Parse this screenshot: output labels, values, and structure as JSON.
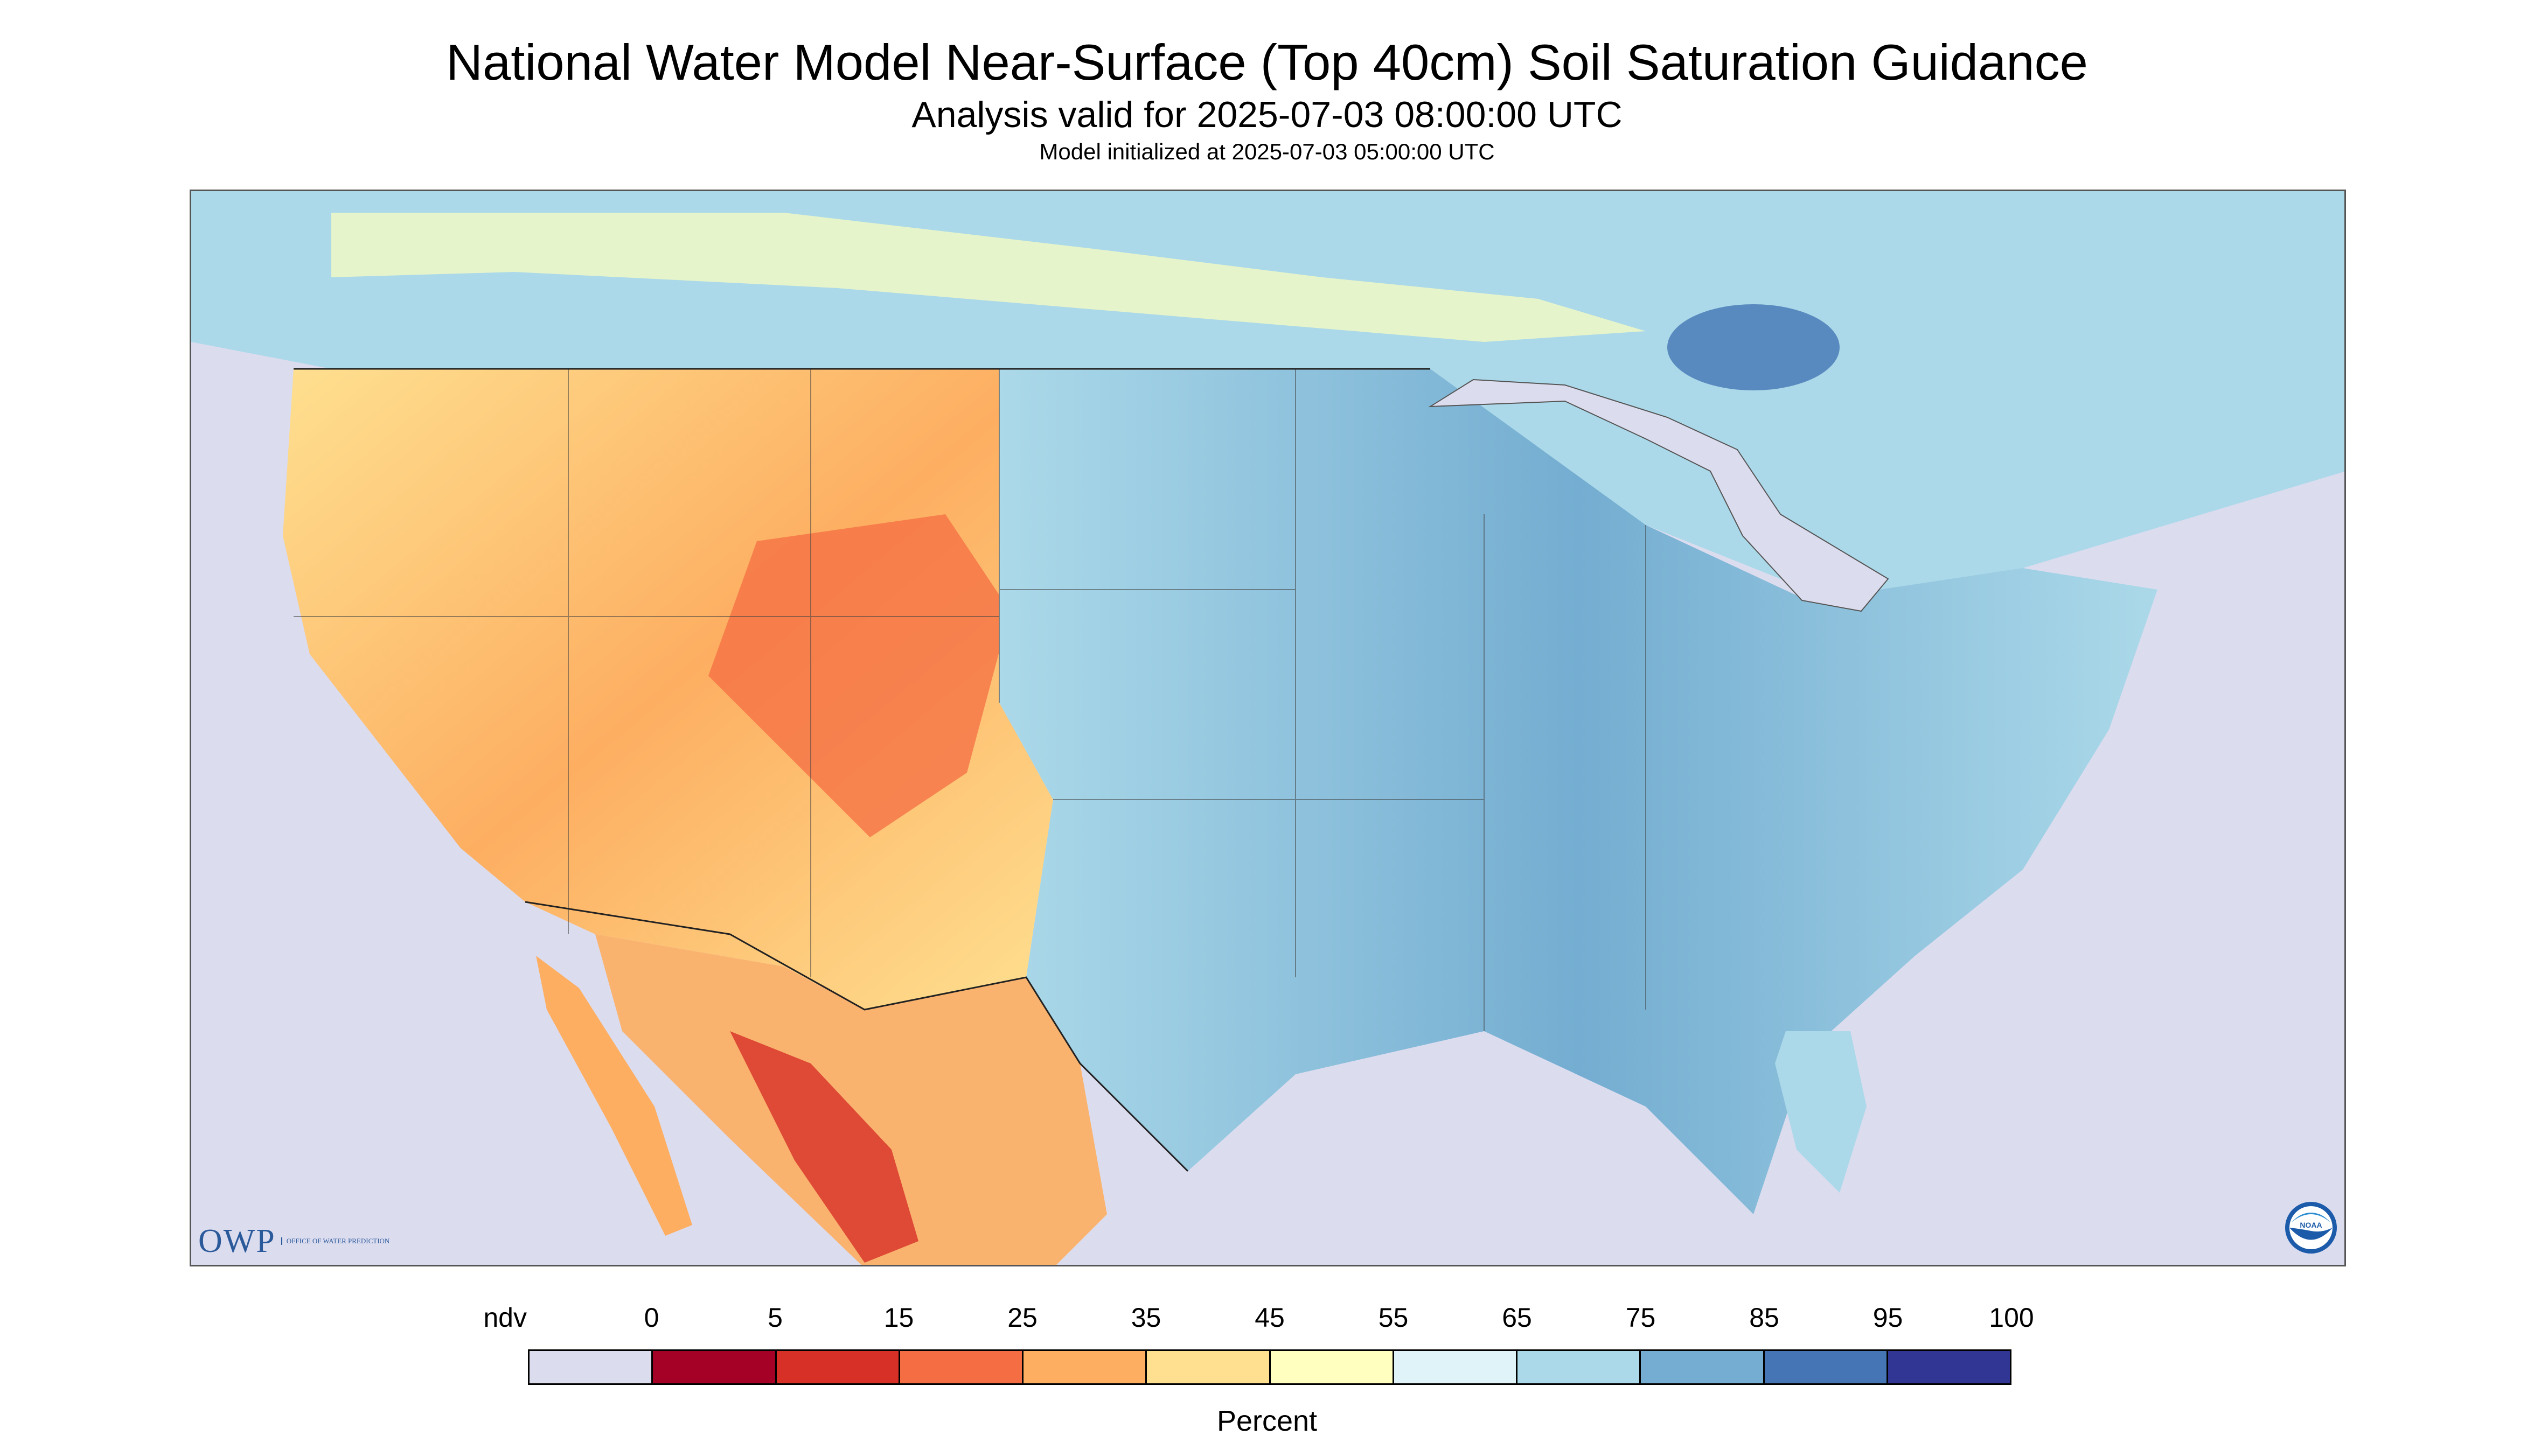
{
  "title": "National Water Model Near-Surface (Top 40cm) Soil Saturation Guidance",
  "subtitle": "Analysis valid for 2025-07-03 08:00:00 UTC",
  "init_line": "Model initialized at 2025-07-03 05:00:00 UTC",
  "logos": {
    "owp_text": "OWP",
    "owp_subtext": "OFFICE OF WATER PREDICTION",
    "noaa_text": "NOAA"
  },
  "legend": {
    "labels": [
      "ndv",
      "0",
      "5",
      "15",
      "25",
      "35",
      "45",
      "55",
      "65",
      "75",
      "85",
      "95",
      "100"
    ],
    "colors": [
      "#dcdcef",
      "#a50026",
      "#d73027",
      "#f46d43",
      "#fdae61",
      "#fee090",
      "#ffffbf",
      "#e0f3f8",
      "#abd9e9",
      "#74add1",
      "#4575b4",
      "#313695"
    ],
    "units": "Percent"
  },
  "map": {
    "type": "choropleth",
    "variable": "soil saturation",
    "region": "CONUS",
    "nodata_color": "#dcdcef",
    "water_color": "#dcdcef",
    "dry_color": "#f46d43",
    "wet_color": "#4575b4"
  }
}
